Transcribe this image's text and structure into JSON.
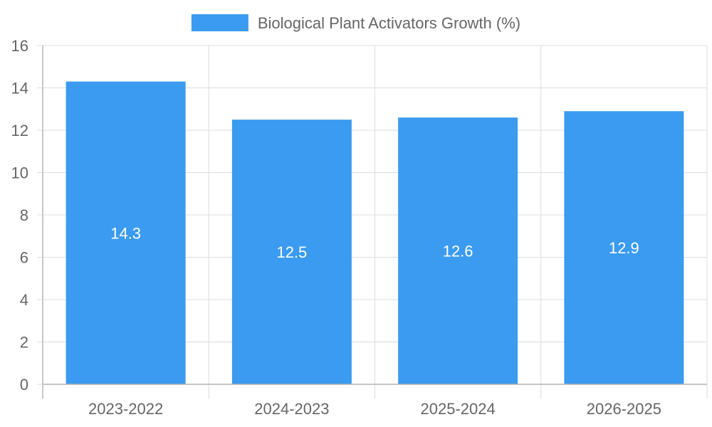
{
  "chart_data": {
    "type": "bar",
    "categories": [
      "2023-2022",
      "2024-2023",
      "2025-2024",
      "2026-2025"
    ],
    "series": [
      {
        "name": "Biological Plant Activators Growth (%)",
        "values": [
          14.3,
          12.5,
          12.6,
          12.9
        ],
        "color": "#3a9bf0"
      }
    ],
    "value_labels": [
      "14.3",
      "12.5",
      "12.6",
      "12.9"
    ],
    "ylim": [
      0,
      16
    ],
    "yticks": [
      0,
      2,
      4,
      6,
      8,
      10,
      12,
      14,
      16
    ],
    "ytick_labels": [
      "0",
      "2",
      "4",
      "6",
      "8",
      "10",
      "12",
      "14",
      "16"
    ],
    "grid": true,
    "legend_position": "top-center",
    "title": "",
    "xlabel": "",
    "ylabel": ""
  }
}
